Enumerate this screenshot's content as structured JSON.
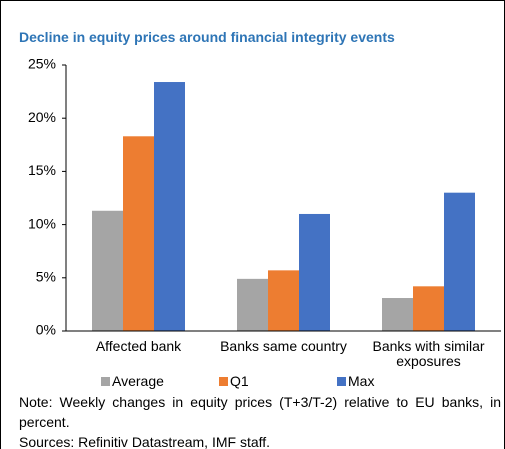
{
  "chart_data": {
    "type": "bar",
    "title": "Decline in equity prices around financial integrity events",
    "categories": [
      "Affected bank",
      "Banks same country",
      "Banks with similar exposures"
    ],
    "series": [
      {
        "name": "Average",
        "color": "#a5a5a5",
        "values": [
          11.3,
          4.9,
          3.1
        ]
      },
      {
        "name": "Q1",
        "color": "#ed7d31",
        "values": [
          18.3,
          5.7,
          4.2
        ]
      },
      {
        "name": "Max",
        "color": "#4472c4",
        "values": [
          23.4,
          11.0,
          13.0
        ]
      }
    ],
    "ylim": [
      0,
      25
    ],
    "yticks": [
      {
        "value": 0,
        "label": "0%"
      },
      {
        "value": 5,
        "label": "5%"
      },
      {
        "value": 10,
        "label": "10%"
      },
      {
        "value": 15,
        "label": "15%"
      },
      {
        "value": 20,
        "label": "20%"
      },
      {
        "value": 25,
        "label": "25%"
      }
    ],
    "grid": false,
    "legend": "bottom",
    "note": "Note: Weekly changes in equity prices (T+3/T-2) relative to EU banks, in percent.",
    "sources": "Sources: Refinitiv Datastream, IMF staff."
  }
}
